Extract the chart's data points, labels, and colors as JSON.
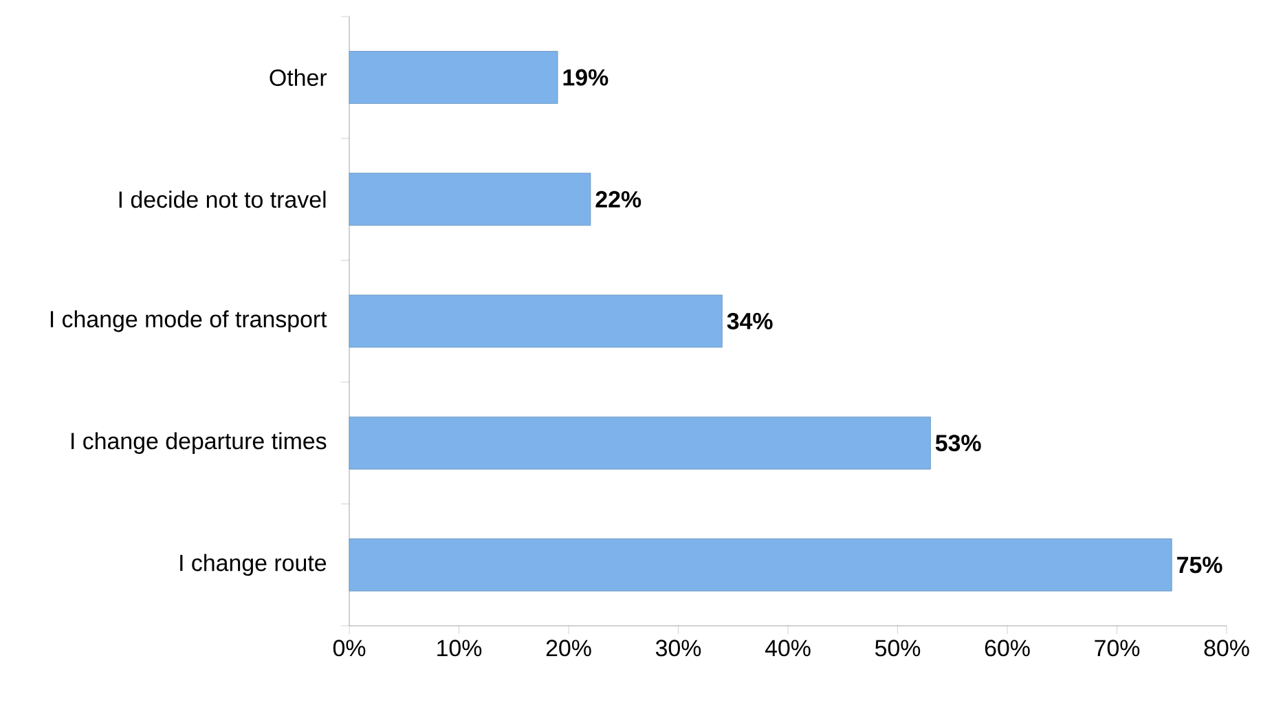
{
  "chart_data": {
    "type": "bar",
    "orientation": "horizontal",
    "categories": [
      "Other",
      "I decide not to travel",
      "I change mode of transport",
      "I change departure times",
      "I change route"
    ],
    "values": [
      19,
      22,
      34,
      53,
      75
    ],
    "value_labels": [
      "19%",
      "22%",
      "34%",
      "53%",
      "75%"
    ],
    "color": "#7db3ea",
    "xlim": [
      0,
      80
    ],
    "xticks": [
      {
        "value": 0,
        "label": "0%"
      },
      {
        "value": 10,
        "label": "10%"
      },
      {
        "value": 20,
        "label": "20%"
      },
      {
        "value": 30,
        "label": "30%"
      },
      {
        "value": 40,
        "label": "40%"
      },
      {
        "value": 50,
        "label": "50%"
      },
      {
        "value": 60,
        "label": "60%"
      },
      {
        "value": 70,
        "label": "70%"
      },
      {
        "value": 80,
        "label": "80%"
      }
    ]
  }
}
